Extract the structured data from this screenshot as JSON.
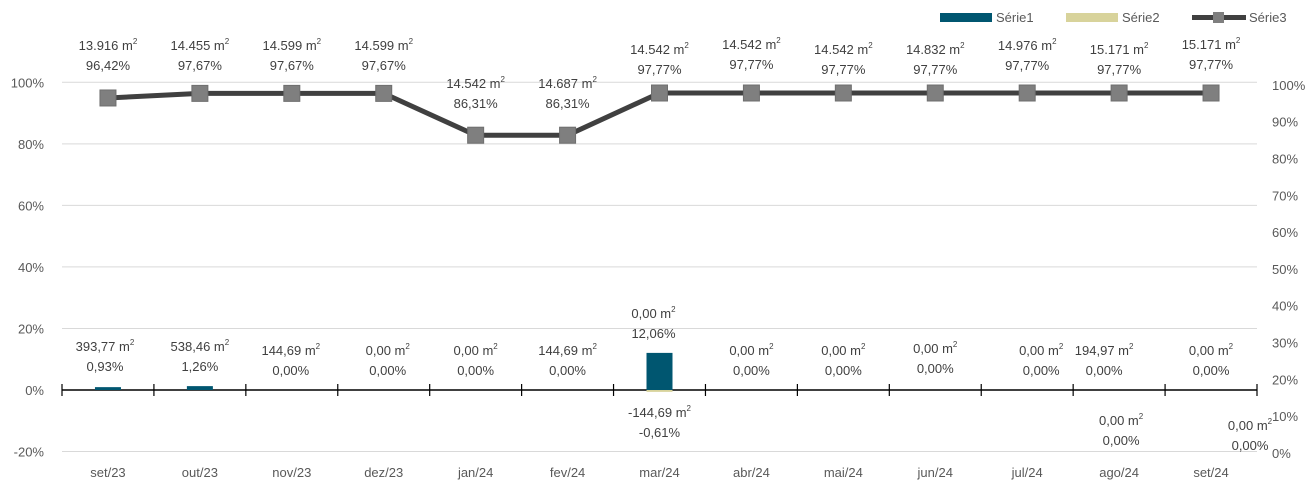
{
  "chart_data": {
    "type": "bar+line",
    "categories": [
      "set/23",
      "out/23",
      "nov/23",
      "dez/23",
      "jan/24",
      "fev/24",
      "mar/24",
      "abr/24",
      "mai/24",
      "jun/24",
      "jul/24",
      "ago/24",
      "set/24"
    ],
    "left_axis": {
      "ticks": [
        "-20%",
        "0%",
        "20%",
        "40%",
        "60%",
        "80%",
        "100%"
      ],
      "range": [
        -20,
        100
      ]
    },
    "right_axis": {
      "ticks": [
        "0%",
        "10%",
        "20%",
        "30%",
        "40%",
        "50%",
        "60%",
        "70%",
        "80%",
        "90%",
        "100%"
      ],
      "range": [
        0,
        100
      ]
    },
    "grid": true,
    "legend": {
      "position": "top-right"
    },
    "series": [
      {
        "name": "Série1",
        "kind": "bar",
        "color": "#005670",
        "axis": "left",
        "values": [
          0.93,
          1.26,
          0.0,
          0.0,
          0.0,
          0.0,
          12.06,
          0.0,
          0.0,
          0.0,
          0.0,
          0.0,
          0.0
        ],
        "labels": [
          [
            "393,77 m²",
            "0,93%"
          ],
          [
            "538,46 m²",
            "1,26%"
          ],
          [
            "144,69 m²",
            "0,00%"
          ],
          [
            "0,00 m²",
            "0,00%"
          ],
          [
            "0,00 m²",
            "0,00%"
          ],
          [
            "144,69 m²",
            "0,00%"
          ],
          [
            "0,00 m²",
            "12,06%"
          ],
          [
            "0,00 m²",
            "0,00%"
          ],
          [
            "0,00 m²",
            "0,00%"
          ],
          [
            "0,00 m²",
            "0,00%"
          ],
          [
            "0,00 m²",
            "0,00%"
          ],
          [
            "194,97 m²",
            "0,00%"
          ],
          [
            "0,00 m²",
            "0,00%"
          ]
        ]
      },
      {
        "name": "Série2",
        "kind": "bar",
        "color": "#D8D39B",
        "axis": "left",
        "values": [
          0,
          0,
          0,
          0,
          0,
          0,
          -0.61,
          0,
          0,
          0,
          0,
          0,
          0
        ],
        "labels": [
          null,
          null,
          null,
          null,
          null,
          null,
          [
            "-144,69 m²",
            "-0,61%"
          ],
          null,
          null,
          null,
          null,
          [
            "0,00 m²",
            "0,00%"
          ],
          [
            "0,00 m²",
            "0,00%"
          ]
        ]
      },
      {
        "name": "Série3",
        "kind": "line",
        "color": "#404040",
        "marker_color": "#7F7F7F",
        "axis": "right",
        "values": [
          96.42,
          97.67,
          97.67,
          97.67,
          86.31,
          86.31,
          97.77,
          97.77,
          97.77,
          97.77,
          97.77,
          97.77,
          97.77
        ],
        "labels": [
          [
            "13.916 m²",
            "96,42%"
          ],
          [
            "14.455 m²",
            "97,67%"
          ],
          [
            "14.599 m²",
            "97,67%"
          ],
          [
            "14.599 m²",
            "97,67%"
          ],
          [
            "14.542 m²",
            "86,31%"
          ],
          [
            "14.687 m²",
            "86,31%"
          ],
          [
            "14.542 m²",
            "97,77%"
          ],
          [
            "14.542 m²",
            "97,77%"
          ],
          [
            "14.542 m²",
            "97,77%"
          ],
          [
            "14.832 m²",
            "97,77%"
          ],
          [
            "14.976 m²",
            "97,77%"
          ],
          [
            "15.171 m²",
            "97,77%"
          ],
          [
            "15.171 m²",
            "97,77%"
          ]
        ]
      }
    ]
  }
}
